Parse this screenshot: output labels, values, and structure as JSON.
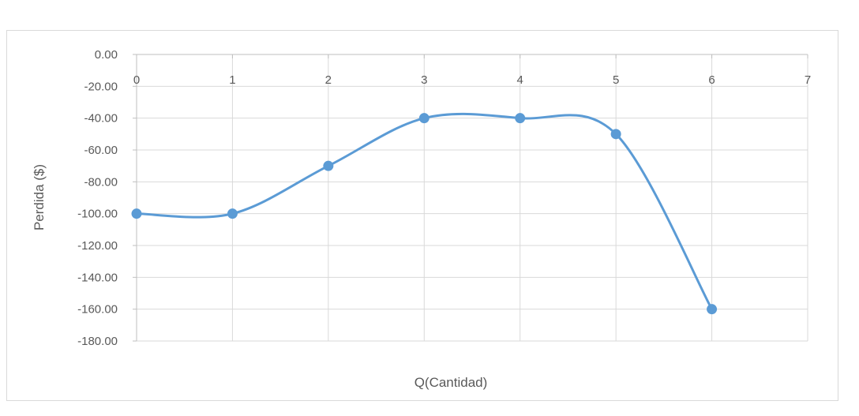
{
  "chart_data": {
    "type": "line",
    "smooth": true,
    "title": "",
    "xlabel": "Q(Cantidad)",
    "ylabel": "Perdida ($)",
    "xlim": [
      0,
      7
    ],
    "ylim": [
      -180,
      0
    ],
    "x_ticks": [
      "0",
      "1",
      "2",
      "3",
      "4",
      "5",
      "6",
      "7"
    ],
    "y_ticks": [
      "0.00",
      "-20.00",
      "-40.00",
      "-60.00",
      "-80.00",
      "-100.00",
      "-120.00",
      "-140.00",
      "-160.00",
      "-180.00"
    ],
    "x_tick_position": "top",
    "grid": true,
    "legend": "none",
    "series": [
      {
        "color": "#5b9bd5",
        "x": [
          0,
          1,
          2,
          3,
          4,
          5,
          6
        ],
        "y": [
          -100,
          -100,
          -70,
          -40,
          -40,
          -50,
          -160
        ]
      }
    ]
  }
}
